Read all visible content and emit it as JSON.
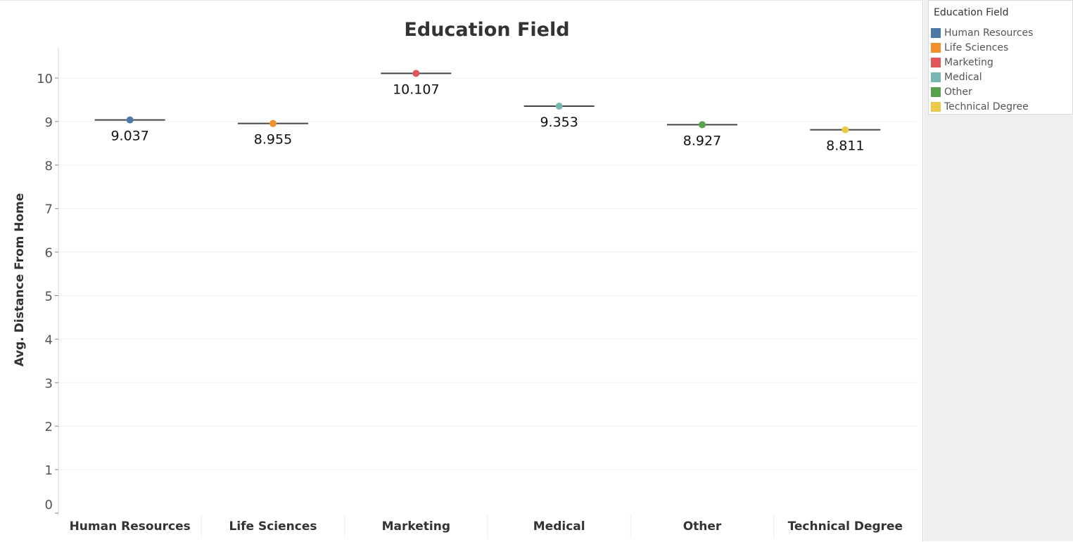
{
  "chart_data": {
    "type": "scatter",
    "title": "Education Field",
    "xlabel": "",
    "ylabel": "Avg. Distance From Home",
    "ylim": [
      0,
      10.7
    ],
    "yticks": [
      0,
      1,
      2,
      3,
      4,
      5,
      6,
      7,
      8,
      9,
      10
    ],
    "grid": true,
    "legend_position": "right",
    "categories": [
      "Human Resources",
      "Life Sciences",
      "Marketing",
      "Medical",
      "Other",
      "Technical Degree"
    ],
    "values": [
      9.037,
      8.955,
      10.107,
      9.353,
      8.927,
      8.811
    ],
    "labels": [
      "9.037",
      "8.955",
      "10.107",
      "9.353",
      "8.927",
      "8.811"
    ],
    "colors": [
      "#4e79a7",
      "#f28e2b",
      "#e15759",
      "#76b7b2",
      "#59a14f",
      "#edc948"
    ]
  },
  "legend": {
    "title": "Education Field",
    "items": [
      {
        "label": "Human Resources",
        "color": "#4e79a7"
      },
      {
        "label": "Life Sciences",
        "color": "#f28e2b"
      },
      {
        "label": "Marketing",
        "color": "#e15759"
      },
      {
        "label": "Medical",
        "color": "#76b7b2"
      },
      {
        "label": "Other",
        "color": "#59a14f"
      },
      {
        "label": "Technical Degree",
        "color": "#edc948"
      }
    ]
  }
}
